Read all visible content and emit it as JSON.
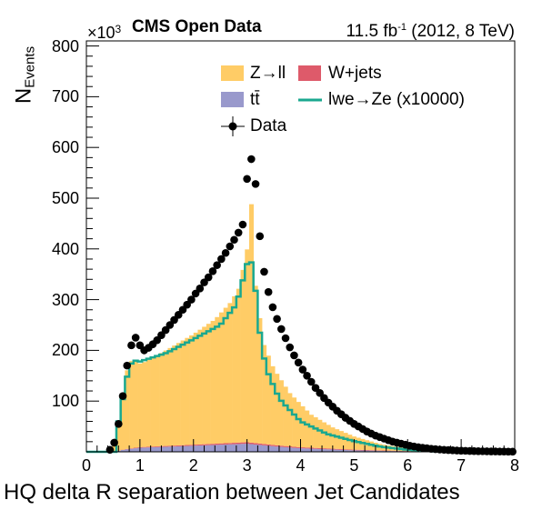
{
  "chart_data": {
    "type": "bar",
    "title": "CMS Open Data",
    "subtitle_left": "CMS Open Data",
    "lumi_prefix": "11.5 fb",
    "lumi_exp": "-1",
    "lumi_suffix": " (2012, 8 TeV)",
    "y_multiplier_base": "×10",
    "y_multiplier_exp": "3",
    "xlabel": "HQ delta R separation between Jet Candidates",
    "ylabel_main": "N",
    "ylabel_sub": "Events",
    "xlim": [
      0,
      8
    ],
    "ylim": [
      0,
      810
    ],
    "x_ticks": [
      "0",
      "1",
      "2",
      "3",
      "4",
      "5",
      "6",
      "7",
      "8"
    ],
    "y_ticks": [
      "100",
      "200",
      "300",
      "400",
      "500",
      "600",
      "700",
      "800"
    ],
    "bin_width": 0.08,
    "legend": {
      "zll": "Z→ll",
      "wjets": "W+jets",
      "ttbar": "tt̄",
      "signal": "lwe→Ze (x10000)",
      "data": "Data"
    },
    "colors": {
      "zll": "#ffcc66",
      "wjets": "#de5a6a",
      "ttbar": "#9999cc",
      "signal": "#1aa88f",
      "data": "#000000"
    },
    "series": [
      {
        "name": "Z→ll",
        "knots": [
          [
            0.4,
            0
          ],
          [
            0.48,
            2
          ],
          [
            0.56,
            20
          ],
          [
            0.64,
            75
          ],
          [
            0.72,
            140
          ],
          [
            0.8,
            170
          ],
          [
            0.9,
            175
          ],
          [
            1.0,
            165
          ],
          [
            1.1,
            168
          ],
          [
            1.3,
            178
          ],
          [
            1.6,
            195
          ],
          [
            2.0,
            218
          ],
          [
            2.4,
            245
          ],
          [
            2.7,
            278
          ],
          [
            2.85,
            305
          ],
          [
            3.0,
            380
          ],
          [
            3.08,
            470
          ],
          [
            3.16,
            310
          ],
          [
            3.3,
            200
          ],
          [
            3.5,
            150
          ],
          [
            3.8,
            105
          ],
          [
            4.2,
            65
          ],
          [
            4.6,
            42
          ],
          [
            5.0,
            26
          ],
          [
            5.5,
            12
          ],
          [
            6.0,
            5
          ],
          [
            6.5,
            2
          ],
          [
            7.0,
            0.6
          ],
          [
            8.0,
            0
          ]
        ]
      },
      {
        "name": "W+jets",
        "knots": [
          [
            0.5,
            0
          ],
          [
            0.8,
            1
          ],
          [
            2.0,
            2
          ],
          [
            3.0,
            3
          ],
          [
            4.0,
            2
          ],
          [
            6.0,
            0.5
          ],
          [
            8.0,
            0
          ]
        ]
      },
      {
        "name": "tt̄",
        "knots": [
          [
            0.5,
            0
          ],
          [
            0.7,
            4
          ],
          [
            1.0,
            8
          ],
          [
            1.5,
            10
          ],
          [
            2.0,
            12
          ],
          [
            2.5,
            14
          ],
          [
            3.0,
            16
          ],
          [
            3.2,
            14
          ],
          [
            3.6,
            10
          ],
          [
            4.0,
            7
          ],
          [
            4.5,
            5
          ],
          [
            5.0,
            3
          ],
          [
            5.5,
            2
          ],
          [
            6.0,
            1
          ],
          [
            7.0,
            0.3
          ],
          [
            8.0,
            0
          ]
        ]
      },
      {
        "name": "lwe→Ze (x10000)",
        "knots": [
          [
            0.56,
            0
          ],
          [
            0.6,
            60
          ],
          [
            0.7,
            115
          ],
          [
            0.8,
            170
          ],
          [
            0.9,
            180
          ],
          [
            1.0,
            178
          ],
          [
            1.5,
            195
          ],
          [
            2.0,
            222
          ],
          [
            2.5,
            250
          ],
          [
            2.8,
            290
          ],
          [
            3.0,
            370
          ],
          [
            3.12,
            375
          ],
          [
            3.2,
            260
          ],
          [
            3.35,
            165
          ],
          [
            3.6,
            105
          ],
          [
            4.0,
            60
          ],
          [
            4.5,
            35
          ],
          [
            5.0,
            21
          ],
          [
            5.5,
            10
          ],
          [
            6.0,
            4
          ],
          [
            6.5,
            1
          ],
          [
            7.0,
            0.3
          ],
          [
            8.0,
            0
          ]
        ]
      },
      {
        "name": "Data",
        "points": [
          [
            0.44,
            4
          ],
          [
            0.52,
            18
          ],
          [
            0.6,
            55
          ],
          [
            0.68,
            110
          ],
          [
            0.76,
            170
          ],
          [
            0.84,
            210
          ],
          [
            0.92,
            225
          ],
          [
            1.0,
            210
          ],
          [
            1.08,
            200
          ],
          [
            1.16,
            205
          ],
          [
            1.24,
            212
          ],
          [
            1.32,
            220
          ],
          [
            1.4,
            230
          ],
          [
            1.48,
            240
          ],
          [
            1.56,
            250
          ],
          [
            1.64,
            260
          ],
          [
            1.72,
            270
          ],
          [
            1.8,
            280
          ],
          [
            1.88,
            290
          ],
          [
            1.96,
            300
          ],
          [
            2.04,
            312
          ],
          [
            2.12,
            322
          ],
          [
            2.2,
            334
          ],
          [
            2.28,
            344
          ],
          [
            2.36,
            356
          ],
          [
            2.44,
            368
          ],
          [
            2.52,
            380
          ],
          [
            2.6,
            392
          ],
          [
            2.68,
            405
          ],
          [
            2.76,
            418
          ],
          [
            2.84,
            432
          ],
          [
            2.92,
            448
          ],
          [
            3.0,
            538
          ],
          [
            3.08,
            577
          ],
          [
            3.16,
            528
          ],
          [
            3.24,
            425
          ],
          [
            3.32,
            355
          ],
          [
            3.4,
            315
          ],
          [
            3.48,
            285
          ],
          [
            3.56,
            262
          ],
          [
            3.64,
            242
          ],
          [
            3.72,
            224
          ],
          [
            3.8,
            206
          ],
          [
            3.88,
            190
          ],
          [
            3.96,
            176
          ],
          [
            4.04,
            162
          ],
          [
            4.12,
            150
          ],
          [
            4.2,
            138
          ],
          [
            4.28,
            126
          ],
          [
            4.36,
            116
          ],
          [
            4.44,
            106
          ],
          [
            4.52,
            97
          ],
          [
            4.6,
            89
          ],
          [
            4.68,
            81
          ],
          [
            4.76,
            74
          ],
          [
            4.84,
            67
          ],
          [
            4.92,
            61
          ],
          [
            5.0,
            55
          ],
          [
            5.08,
            50
          ],
          [
            5.16,
            45
          ],
          [
            5.24,
            40
          ],
          [
            5.32,
            36
          ],
          [
            5.4,
            32
          ],
          [
            5.48,
            29
          ],
          [
            5.56,
            26
          ],
          [
            5.64,
            23
          ],
          [
            5.72,
            20
          ],
          [
            5.8,
            18
          ],
          [
            5.88,
            16
          ],
          [
            5.96,
            14
          ],
          [
            6.04,
            12
          ],
          [
            6.12,
            10.5
          ],
          [
            6.2,
            9
          ],
          [
            6.28,
            8
          ],
          [
            6.36,
            7
          ],
          [
            6.44,
            6
          ],
          [
            6.52,
            5.2
          ],
          [
            6.6,
            4.5
          ],
          [
            6.68,
            4
          ],
          [
            6.76,
            3.4
          ],
          [
            6.84,
            3
          ],
          [
            6.92,
            2.6
          ],
          [
            7.0,
            2.2
          ],
          [
            7.08,
            2
          ],
          [
            7.16,
            1.7
          ],
          [
            7.24,
            1.5
          ],
          [
            7.32,
            1.3
          ],
          [
            7.4,
            1.1
          ],
          [
            7.48,
            1
          ],
          [
            7.56,
            0.8
          ],
          [
            7.64,
            0.7
          ],
          [
            7.72,
            0.6
          ],
          [
            7.8,
            0.5
          ],
          [
            7.88,
            0.4
          ],
          [
            7.96,
            0.3
          ]
        ]
      }
    ]
  }
}
